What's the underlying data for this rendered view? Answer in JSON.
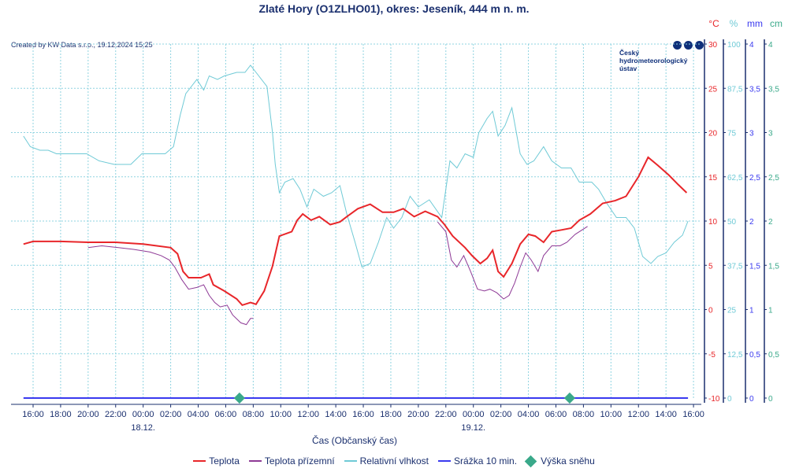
{
  "header": {
    "title": "Zlaté Hory (O1ZLHO01), okres: Jeseník, 444 m n. m.",
    "created": "Created by KW Data s.r.o., 19.12.2024 15:25"
  },
  "logo": {
    "line1": "Český",
    "line2": "hydrometeorologický",
    "line3": "ústav"
  },
  "colors": {
    "temp": "#e8262a",
    "ground": "#8e3a96",
    "humidity": "#6fcad6",
    "precip": "#3a3aef",
    "snow": "#3aa98a",
    "axis": "#1a2f6e",
    "grid": "#8fd3e0"
  },
  "legend": [
    "Teplota",
    "Teplota přízemní",
    "Relativní vlhkost",
    "Srážka 10 min.",
    "Výška sněhu"
  ],
  "chart_data": {
    "type": "line",
    "title": "Zlaté Hory (O1ZLHO01), okres: Jeseník, 444 m n. m.",
    "xlabel": "Čas (Občanský čas)",
    "x_unit": "hours since 17.12.2024 00:00",
    "xlim": [
      14.4,
      64.6
    ],
    "x_ticks": [
      16,
      18,
      20,
      22,
      24,
      26,
      28,
      30,
      32,
      34,
      36,
      38,
      40,
      42,
      44,
      46,
      48,
      50,
      52,
      54,
      56,
      58,
      60,
      62,
      64
    ],
    "x_tick_labels": [
      "16:00",
      "18:00",
      "20:00",
      "22:00",
      "00:00",
      "02:00",
      "04:00",
      "06:00",
      "08:00",
      "10:00",
      "12:00",
      "14:00",
      "16:00",
      "18:00",
      "20:00",
      "22:00",
      "00:00",
      "02:00",
      "04:00",
      "06:00",
      "08:00",
      "10:00",
      "12:00",
      "14:00",
      "16:00"
    ],
    "date_labels": [
      {
        "x": 24,
        "label": "18.12."
      },
      {
        "x": 48,
        "label": "19.12."
      }
    ],
    "axes": [
      {
        "unit": "°C",
        "min": -10,
        "max": 30,
        "ticks": [
          "-10",
          "-5",
          "0",
          "5",
          "10",
          "15",
          "20",
          "25",
          "30"
        ]
      },
      {
        "unit": "%",
        "min": 0,
        "max": 100,
        "ticks": [
          "0",
          "12,5",
          "25",
          "37,5",
          "50",
          "62,5",
          "75",
          "87,5",
          "100"
        ]
      },
      {
        "unit": "mm",
        "min": 0,
        "max": 4,
        "ticks": [
          "0",
          "0,5",
          "1",
          "1,5",
          "2",
          "2,5",
          "3",
          "3,5",
          "4"
        ]
      },
      {
        "unit": "cm",
        "min": 0,
        "max": 4,
        "ticks": [
          "0",
          "0,5",
          "1",
          "1,5",
          "2",
          "2,5",
          "3",
          "3,5",
          "4"
        ]
      }
    ],
    "grid": true,
    "legend_position": "bottom",
    "series": [
      {
        "name": "Teplota",
        "axis": 0,
        "points": [
          [
            15.3,
            7.4
          ],
          [
            16,
            7.7
          ],
          [
            18,
            7.7
          ],
          [
            20,
            7.6
          ],
          [
            22,
            7.6
          ],
          [
            24,
            7.4
          ],
          [
            25,
            7.2
          ],
          [
            26,
            7.0
          ],
          [
            26.5,
            6.3
          ],
          [
            26.9,
            4.3
          ],
          [
            27.3,
            3.6
          ],
          [
            28.2,
            3.6
          ],
          [
            28.8,
            4.0
          ],
          [
            29.1,
            2.8
          ],
          [
            29.9,
            2.1
          ],
          [
            30.8,
            1.2
          ],
          [
            31.2,
            0.5
          ],
          [
            31.8,
            0.8
          ],
          [
            32.2,
            0.6
          ],
          [
            32.8,
            2.1
          ],
          [
            33.4,
            4.9
          ],
          [
            33.9,
            8.3
          ],
          [
            34.8,
            8.8
          ],
          [
            35.2,
            10.1
          ],
          [
            35.6,
            10.8
          ],
          [
            36.2,
            10.1
          ],
          [
            36.8,
            10.5
          ],
          [
            37.6,
            9.6
          ],
          [
            38.3,
            9.9
          ],
          [
            38.8,
            10.5
          ],
          [
            39.6,
            11.4
          ],
          [
            40.5,
            11.9
          ],
          [
            41.4,
            11.0
          ],
          [
            42.2,
            11.0
          ],
          [
            42.9,
            11.4
          ],
          [
            43.7,
            10.5
          ],
          [
            44.5,
            11.1
          ],
          [
            45.4,
            10.5
          ],
          [
            45.9,
            9.6
          ],
          [
            46.5,
            8.3
          ],
          [
            47.4,
            7.0
          ],
          [
            47.9,
            6.1
          ],
          [
            48.5,
            5.2
          ],
          [
            49.0,
            5.8
          ],
          [
            49.4,
            6.7
          ],
          [
            49.8,
            4.3
          ],
          [
            50.2,
            3.7
          ],
          [
            50.8,
            5.2
          ],
          [
            51.4,
            7.4
          ],
          [
            52.0,
            8.5
          ],
          [
            52.5,
            8.3
          ],
          [
            53.1,
            7.6
          ],
          [
            53.7,
            8.8
          ],
          [
            54.4,
            9.0
          ],
          [
            55.1,
            9.2
          ],
          [
            55.7,
            10.1
          ],
          [
            56.5,
            10.8
          ],
          [
            57.4,
            12.0
          ],
          [
            58.3,
            12.3
          ],
          [
            59.1,
            12.8
          ],
          [
            60.0,
            15.0
          ],
          [
            60.7,
            17.2
          ],
          [
            61.4,
            16.3
          ],
          [
            62.2,
            15.2
          ],
          [
            62.9,
            14.1
          ],
          [
            63.5,
            13.2
          ]
        ]
      },
      {
        "name": "Teplota přízemní",
        "axis": 0,
        "segments": [
          [
            [
              20.0,
              7.0
            ],
            [
              21.0,
              7.2
            ],
            [
              22.2,
              7.0
            ],
            [
              23.3,
              6.8
            ],
            [
              24.5,
              6.5
            ],
            [
              25.3,
              6.1
            ],
            [
              25.9,
              5.6
            ],
            [
              26.3,
              4.8
            ],
            [
              26.8,
              3.4
            ],
            [
              27.3,
              2.3
            ],
            [
              27.9,
              2.5
            ],
            [
              28.4,
              2.8
            ],
            [
              28.8,
              1.6
            ],
            [
              29.2,
              0.8
            ],
            [
              29.6,
              0.3
            ],
            [
              30.1,
              0.5
            ],
            [
              30.5,
              -0.6
            ],
            [
              31.1,
              -1.5
            ],
            [
              31.5,
              -1.7
            ],
            [
              31.8,
              -1.0
            ],
            [
              32.0,
              -1.0
            ]
          ],
          [
            [
              45.4,
              9.9
            ],
            [
              46.0,
              8.8
            ],
            [
              46.4,
              5.6
            ],
            [
              46.8,
              4.8
            ],
            [
              47.3,
              6.1
            ],
            [
              47.8,
              4.3
            ],
            [
              48.3,
              2.3
            ],
            [
              48.8,
              2.1
            ],
            [
              49.2,
              2.3
            ],
            [
              49.7,
              1.9
            ],
            [
              50.2,
              1.2
            ],
            [
              50.6,
              1.6
            ],
            [
              51.0,
              3.0
            ],
            [
              51.4,
              4.8
            ],
            [
              51.8,
              6.4
            ],
            [
              52.2,
              5.6
            ],
            [
              52.7,
              4.3
            ],
            [
              53.1,
              6.1
            ],
            [
              53.7,
              7.2
            ],
            [
              54.3,
              7.2
            ],
            [
              54.8,
              7.6
            ],
            [
              55.4,
              8.5
            ],
            [
              56.3,
              9.4
            ]
          ]
        ]
      },
      {
        "name": "Relativní vlhkost",
        "axis": 1,
        "points": [
          [
            15.3,
            74
          ],
          [
            15.8,
            71
          ],
          [
            16.5,
            70
          ],
          [
            17.1,
            70
          ],
          [
            17.7,
            69
          ],
          [
            18.8,
            69
          ],
          [
            19.9,
            69
          ],
          [
            20.8,
            67
          ],
          [
            21.9,
            66
          ],
          [
            23.1,
            66
          ],
          [
            23.9,
            69
          ],
          [
            25.1,
            69
          ],
          [
            25.6,
            69
          ],
          [
            26.2,
            71
          ],
          [
            26.7,
            80
          ],
          [
            27.1,
            86
          ],
          [
            27.5,
            88
          ],
          [
            27.9,
            90
          ],
          [
            28.4,
            87
          ],
          [
            28.8,
            91
          ],
          [
            29.4,
            90
          ],
          [
            29.9,
            91
          ],
          [
            30.8,
            92
          ],
          [
            31.4,
            92
          ],
          [
            31.8,
            94
          ],
          [
            32.2,
            92
          ],
          [
            33.0,
            88
          ],
          [
            33.4,
            75
          ],
          [
            33.6,
            66
          ],
          [
            33.9,
            58
          ],
          [
            34.3,
            61
          ],
          [
            34.9,
            62
          ],
          [
            35.4,
            59
          ],
          [
            35.9,
            54
          ],
          [
            36.4,
            59
          ],
          [
            37.1,
            57
          ],
          [
            37.7,
            58
          ],
          [
            38.3,
            60
          ],
          [
            38.8,
            52
          ],
          [
            39.4,
            44
          ],
          [
            39.9,
            37
          ],
          [
            40.5,
            38
          ],
          [
            41.1,
            44
          ],
          [
            41.7,
            51
          ],
          [
            42.2,
            48
          ],
          [
            42.8,
            51
          ],
          [
            43.4,
            57
          ],
          [
            44.0,
            54
          ],
          [
            44.8,
            56
          ],
          [
            45.7,
            51
          ],
          [
            46.3,
            67
          ],
          [
            46.8,
            65
          ],
          [
            47.4,
            69
          ],
          [
            48.0,
            68
          ],
          [
            48.4,
            75
          ],
          [
            49.0,
            79
          ],
          [
            49.4,
            81
          ],
          [
            49.8,
            74
          ],
          [
            50.3,
            77
          ],
          [
            50.8,
            82
          ],
          [
            51.4,
            69
          ],
          [
            51.9,
            66
          ],
          [
            52.4,
            67
          ],
          [
            53.1,
            71
          ],
          [
            53.7,
            67
          ],
          [
            54.4,
            65
          ],
          [
            55.1,
            65
          ],
          [
            55.7,
            61
          ],
          [
            56.6,
            61
          ],
          [
            57.1,
            59
          ],
          [
            57.7,
            55
          ],
          [
            58.4,
            51
          ],
          [
            59.1,
            51
          ],
          [
            59.7,
            48
          ],
          [
            60.3,
            40
          ],
          [
            60.9,
            38
          ],
          [
            61.4,
            40
          ],
          [
            62.0,
            41
          ],
          [
            62.6,
            44
          ],
          [
            63.2,
            46
          ],
          [
            63.6,
            50
          ]
        ]
      },
      {
        "name": "Srážka 10 min.",
        "axis": 2,
        "points": [
          [
            15.3,
            0
          ],
          [
            63.6,
            0
          ]
        ]
      },
      {
        "name": "Výška sněhu",
        "axis": 3,
        "points": [
          [
            31,
            0
          ],
          [
            55,
            0
          ]
        ]
      }
    ]
  }
}
